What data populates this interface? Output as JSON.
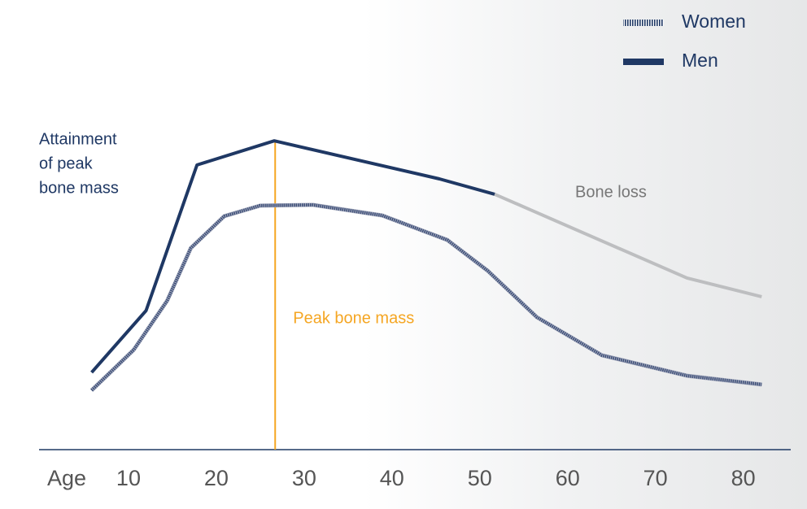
{
  "chart_data": {
    "type": "line",
    "x_label": "Age",
    "xlim": [
      0,
      85.5
    ],
    "xticks": [
      10,
      20,
      30,
      40,
      50,
      60,
      70,
      80
    ],
    "ylim": [
      0,
      100
    ],
    "series": [
      {
        "name": "Women",
        "color": "#3d4f78",
        "style": "hatched",
        "x": [
          5.8,
          10.6,
          14.4,
          17.1,
          20.9,
          25.0,
          31.0,
          38.9,
          46.3,
          50.9,
          56.5,
          63.9,
          73.6,
          82.1
        ],
        "values": [
          16.2,
          27.3,
          40.7,
          55.1,
          63.8,
          66.7,
          66.9,
          64.0,
          57.3,
          48.9,
          36.2,
          25.8,
          20.2,
          17.8
        ]
      },
      {
        "name": "Men",
        "color": "#1f3864",
        "style": "solid",
        "x": [
          5.8,
          12.0,
          17.8,
          26.6,
          45.4,
          51.7
        ],
        "values": [
          21.1,
          38.0,
          77.8,
          84.4,
          74.0,
          69.8
        ]
      },
      {
        "name": "Bone loss",
        "color": "#bdbec0",
        "style": "solid",
        "legend": false,
        "x": [
          51.7,
          73.6,
          82.1
        ],
        "values": [
          69.8,
          46.9,
          41.8
        ]
      }
    ],
    "peak_line": {
      "x": 26.7,
      "label": "Peak bone mass",
      "color": "#f5a623"
    },
    "annotation": [
      "Attainment",
      "of peak",
      "bone mass"
    ],
    "legend": "top-right"
  }
}
